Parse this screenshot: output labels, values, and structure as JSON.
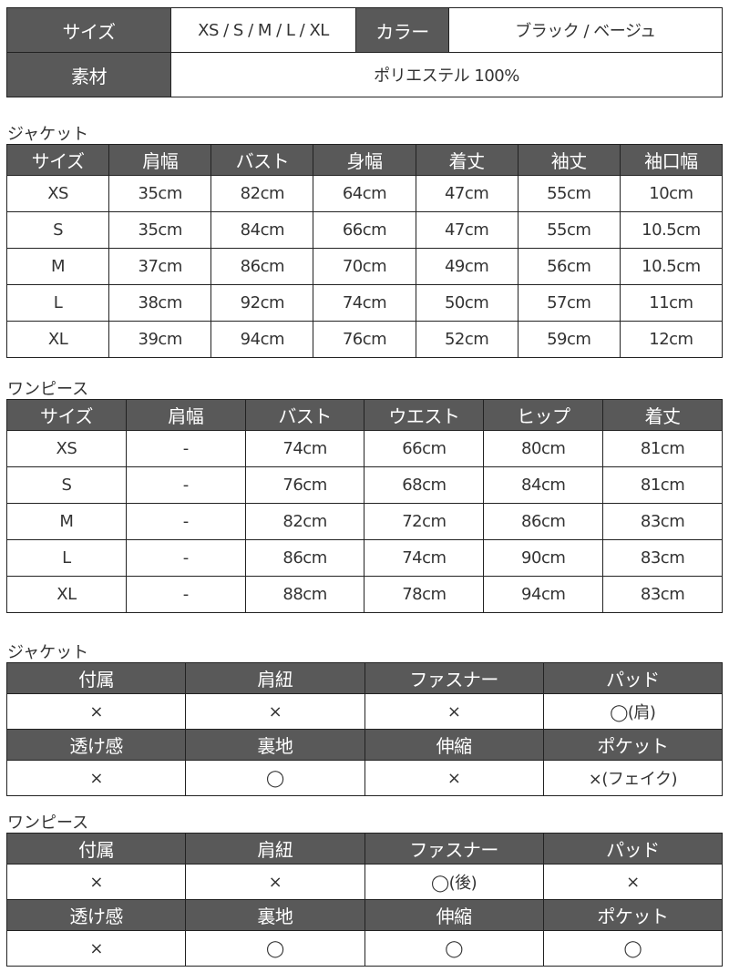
{
  "colors": {
    "header_bg": "#595959",
    "header_text": "#ffffff",
    "border": "#222222"
  },
  "info": {
    "size_label": "サイズ",
    "size_value": "XS / S / M / L / XL",
    "color_label": "カラー",
    "color_value": "ブラック / ベージュ",
    "material_label": "素材",
    "material_value": "ポリエステル 100%"
  },
  "jacket_size": {
    "title": "ジャケット",
    "headers": [
      "サイズ",
      "肩幅",
      "バスト",
      "身幅",
      "着丈",
      "袖丈",
      "袖口幅"
    ],
    "rows": [
      [
        "XS",
        "35cm",
        "82cm",
        "64cm",
        "47cm",
        "55cm",
        "10cm"
      ],
      [
        "S",
        "35cm",
        "84cm",
        "66cm",
        "47cm",
        "55cm",
        "10.5cm"
      ],
      [
        "M",
        "37cm",
        "86cm",
        "70cm",
        "49cm",
        "56cm",
        "10.5cm"
      ],
      [
        "L",
        "38cm",
        "92cm",
        "74cm",
        "50cm",
        "57cm",
        "11cm"
      ],
      [
        "XL",
        "39cm",
        "94cm",
        "76cm",
        "52cm",
        "59cm",
        "12cm"
      ]
    ]
  },
  "dress_size": {
    "title": "ワンピース",
    "headers": [
      "サイズ",
      "肩幅",
      "バスト",
      "ウエスト",
      "ヒップ",
      "着丈"
    ],
    "rows": [
      [
        "XS",
        "-",
        "74cm",
        "66cm",
        "80cm",
        "81cm"
      ],
      [
        "S",
        "-",
        "76cm",
        "68cm",
        "84cm",
        "81cm"
      ],
      [
        "M",
        "-",
        "82cm",
        "72cm",
        "86cm",
        "83cm"
      ],
      [
        "L",
        "-",
        "86cm",
        "74cm",
        "90cm",
        "83cm"
      ],
      [
        "XL",
        "-",
        "88cm",
        "78cm",
        "94cm",
        "83cm"
      ]
    ]
  },
  "jacket_spec": {
    "title": "ジャケット",
    "rows": [
      {
        "headers": [
          "付属",
          "肩紐",
          "ファスナー",
          "パッド"
        ],
        "values": [
          "×",
          "×",
          "×",
          "◯(肩)"
        ]
      },
      {
        "headers": [
          "透け感",
          "裏地",
          "伸縮",
          "ポケット"
        ],
        "values": [
          "×",
          "◯",
          "×",
          "×(フェイク)"
        ]
      }
    ]
  },
  "dress_spec": {
    "title": "ワンピース",
    "rows": [
      {
        "headers": [
          "付属",
          "肩紐",
          "ファスナー",
          "パッド"
        ],
        "values": [
          "×",
          "×",
          "◯(後)",
          "×"
        ]
      },
      {
        "headers": [
          "透け感",
          "裏地",
          "伸縮",
          "ポケット"
        ],
        "values": [
          "×",
          "◯",
          "◯",
          "◯"
        ]
      }
    ]
  }
}
